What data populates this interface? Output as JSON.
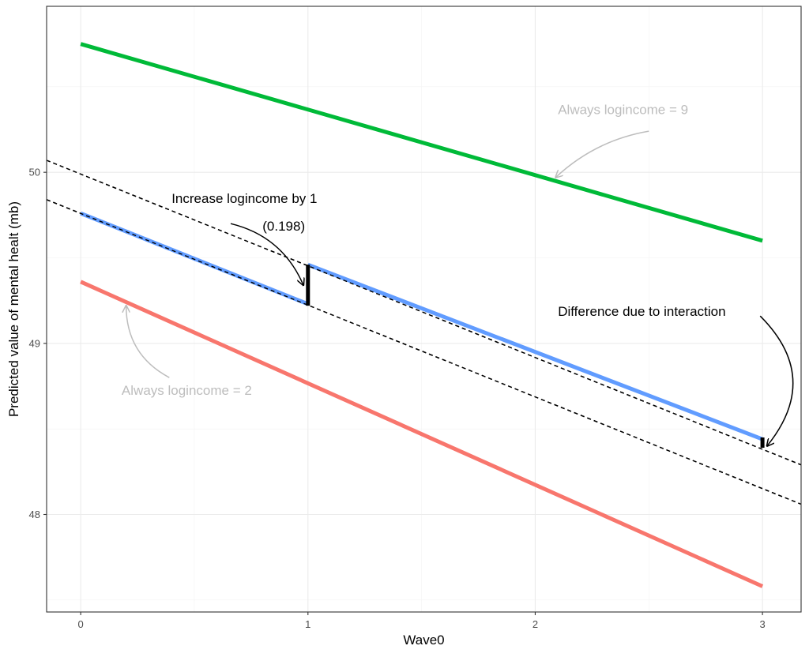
{
  "chart_data": {
    "type": "line",
    "xlabel": "Wave0",
    "ylabel": "Predicted value of mental healt (mb)",
    "xlim": [
      -0.15,
      3.17
    ],
    "ylim": [
      47.43,
      50.97
    ],
    "x_ticks": [
      0,
      1,
      2,
      3
    ],
    "y_ticks": [
      48,
      49,
      50
    ],
    "grid": true,
    "colors": {
      "always_9": "#00ba38",
      "increase": "#619cff",
      "always_2": "#f8766d",
      "annotation_dark": "#000000",
      "annotation_grey": "#bdbdbd"
    },
    "series": [
      {
        "key": "always_9",
        "color": "#00ba38",
        "points": [
          [
            0,
            50.75
          ],
          [
            3,
            49.6
          ]
        ]
      },
      {
        "key": "increase_a",
        "color": "#619cff",
        "points": [
          [
            0,
            49.76
          ],
          [
            1,
            49.23
          ]
        ]
      },
      {
        "key": "increase_b",
        "color": "#619cff",
        "points": [
          [
            1,
            49.46
          ],
          [
            3,
            48.44
          ]
        ]
      },
      {
        "key": "always_2",
        "color": "#f8766d",
        "points": [
          [
            0,
            49.36
          ],
          [
            3,
            47.58
          ]
        ]
      }
    ],
    "reference_lines": [
      {
        "key": "ref_upper",
        "points": [
          [
            -0.15,
            50.07
          ],
          [
            3.17,
            48.29
          ]
        ]
      },
      {
        "key": "ref_lower",
        "points": [
          [
            -0.15,
            49.84
          ],
          [
            3.17,
            48.06
          ]
        ]
      }
    ],
    "segments": [
      {
        "key": "jump_at_1",
        "from": [
          1,
          49.22
        ],
        "to": [
          1,
          49.46
        ]
      },
      {
        "key": "interaction_gap_at_3",
        "from": [
          3,
          48.39
        ],
        "to": [
          3,
          48.45
        ]
      }
    ],
    "annotations": [
      {
        "key": "always9",
        "text": "Always logincome = 9",
        "style": "grey",
        "at": [
          2.1,
          50.34
        ],
        "arrow_from": [
          2.5,
          50.24
        ],
        "arrow_to": [
          2.09,
          49.97
        ],
        "curve": 0.15
      },
      {
        "key": "increase",
        "text": "Increase logincome by 1",
        "style": "dark",
        "at": [
          0.4,
          49.82
        ],
        "arrow_from": [
          0.66,
          49.7
        ],
        "arrow_to": [
          0.98,
          49.34
        ],
        "curve": -0.25
      },
      {
        "key": "increase_value",
        "text": "(0.198)",
        "style": "dark",
        "at": [
          0.8,
          49.66
        ]
      },
      {
        "key": "interaction",
        "text": "Difference due to interaction",
        "style": "dark",
        "at": [
          2.1,
          49.16
        ],
        "arrow_from": [
          2.99,
          49.16
        ],
        "arrow_to": [
          3.02,
          48.4
        ],
        "curve": -0.45
      },
      {
        "key": "always2",
        "text": "Always logincome = 2",
        "style": "grey",
        "at": [
          0.18,
          48.7
        ],
        "arrow_from": [
          0.39,
          48.8
        ],
        "arrow_to": [
          0.2,
          49.22
        ],
        "curve": -0.3
      }
    ]
  }
}
